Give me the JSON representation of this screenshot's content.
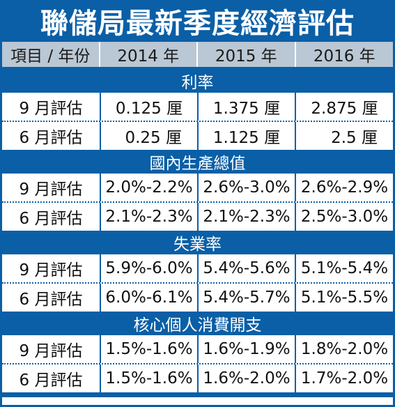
{
  "title": "聯儲局最新季度經濟評估",
  "header": {
    "col_label": "項目 / 年份",
    "years": [
      "2014 年",
      "2015 年",
      "2016 年"
    ]
  },
  "sections": [
    {
      "name": "利率",
      "rows": [
        {
          "label": "9 月評估",
          "values": [
            "0.125 厘",
            "1.375 厘",
            "2.875 厘"
          ]
        },
        {
          "label": "6 月評估",
          "values": [
            "0.25 厘",
            "1.125 厘",
            "2.5 厘"
          ]
        }
      ]
    },
    {
      "name": "國內生產總值",
      "rows": [
        {
          "label": "9 月評估",
          "values": [
            "2.0%-2.2%",
            "2.6%-3.0%",
            "2.6%-2.9%"
          ]
        },
        {
          "label": "6 月評估",
          "values": [
            "2.1%-2.3%",
            "2.1%-2.3%",
            "2.5%-3.0%"
          ]
        }
      ]
    },
    {
      "name": "失業率",
      "rows": [
        {
          "label": "9 月評估",
          "values": [
            "5.9%-6.0%",
            "5.4%-5.6%",
            "5.1%-5.4%"
          ]
        },
        {
          "label": "6 月評估",
          "values": [
            "6.0%-6.1%",
            "5.4%-5.7%",
            "5.1%-5.5%"
          ]
        }
      ]
    },
    {
      "name": "核心個人消費開支",
      "rows": [
        {
          "label": "9 月評估",
          "values": [
            "1.5%-1.6%",
            "1.6%-1.9%",
            "1.8%-2.0%"
          ]
        },
        {
          "label": "6 月評估",
          "values": [
            "1.5%-1.6%",
            "1.6%-2.0%",
            "1.7%-2.0%"
          ]
        }
      ]
    }
  ],
  "colors": {
    "header_blue": "#0a5fa6",
    "header_gray": "#bac7d4"
  }
}
